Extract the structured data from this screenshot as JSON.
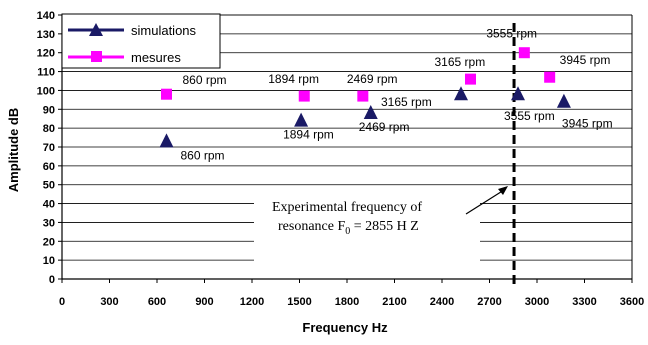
{
  "chart_data": {
    "type": "scatter",
    "xlabel": "Frequency Hz",
    "ylabel": "Amplitude dB",
    "xlim": [
      0,
      3600
    ],
    "ylim": [
      0,
      140
    ],
    "xticks": [
      0,
      300,
      600,
      900,
      1200,
      1500,
      1800,
      2100,
      2400,
      2700,
      3000,
      3300,
      3600
    ],
    "yticks": [
      0,
      10,
      20,
      30,
      40,
      50,
      60,
      70,
      80,
      90,
      100,
      110,
      120,
      130,
      140
    ],
    "grid": "horizontal",
    "legend_position": "top-left",
    "series": [
      {
        "name": "simulations",
        "marker": "triangle",
        "color": "#1a1a66",
        "points": [
          {
            "x": 660,
            "y": 73,
            "label": "860 rpm"
          },
          {
            "x": 1510,
            "y": 84,
            "label": "1894 rpm"
          },
          {
            "x": 1950,
            "y": 88,
            "label": "2469 rpm"
          },
          {
            "x": 2520,
            "y": 98,
            "label": "3165 rpm"
          },
          {
            "x": 2880,
            "y": 98,
            "label": "3555 rpm"
          },
          {
            "x": 3170,
            "y": 94,
            "label": "3945 rpm"
          }
        ]
      },
      {
        "name": "mesures",
        "marker": "square",
        "color": "#ff00ff",
        "points": [
          {
            "x": 660,
            "y": 98,
            "label": "860 rpm"
          },
          {
            "x": 1530,
            "y": 97,
            "label": "1894 rpm"
          },
          {
            "x": 1900,
            "y": 97,
            "label": "2469 rpm"
          },
          {
            "x": 2580,
            "y": 106,
            "label": "3165 rpm"
          },
          {
            "x": 2920,
            "y": 120,
            "label": "3555 rpm"
          },
          {
            "x": 3080,
            "y": 107,
            "label": "3945 rpm"
          }
        ]
      }
    ],
    "resonance_line": {
      "x": 2855,
      "style": "dashed"
    },
    "annotation": {
      "line1": "Experimental frequency of",
      "line2_prefix": "resonance  F",
      "line2_sub": "0",
      "line2_suffix": " = 2855 H Z"
    }
  }
}
